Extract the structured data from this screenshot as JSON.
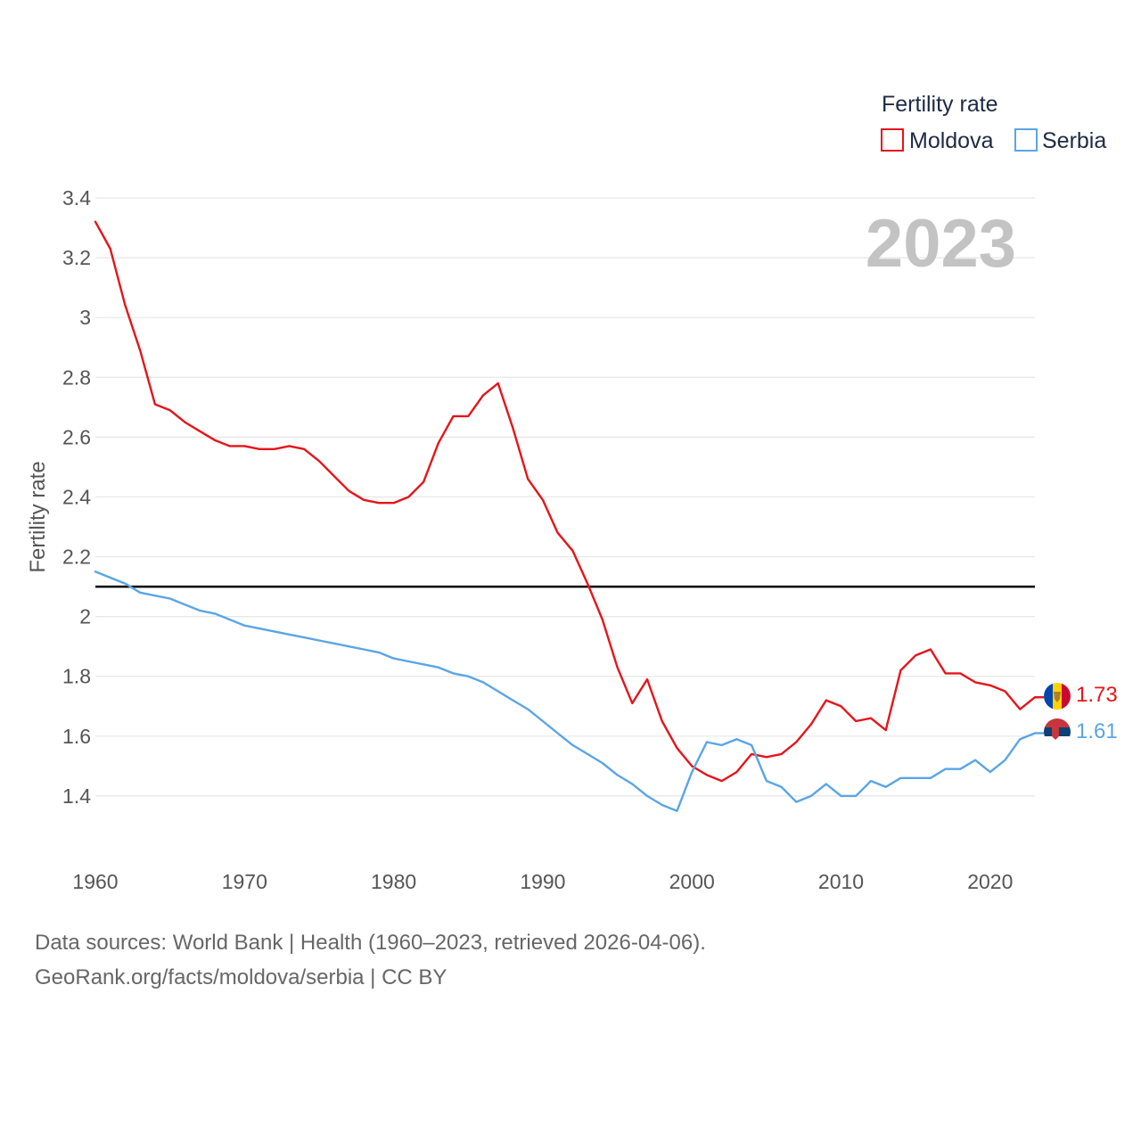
{
  "chart_data": {
    "type": "line",
    "title": "",
    "xlabel": "",
    "ylabel": "Fertility rate",
    "xlim": [
      1960,
      2023
    ],
    "ylim": [
      1.2,
      3.4
    ],
    "x_ticks": [
      1960,
      1970,
      1980,
      1990,
      2000,
      2010,
      2020
    ],
    "y_ticks": [
      1.4,
      1.6,
      1.8,
      2,
      2.2,
      2.4,
      2.6,
      2.8,
      3,
      3.2,
      3.4
    ],
    "y_tick_labels": [
      "1.4",
      "1.6",
      "1.8",
      "2",
      "2.2",
      "2.4",
      "2.6",
      "2.8",
      "3",
      "3.2",
      "3.4"
    ],
    "x_tick_labels": [
      "1960",
      "1970",
      "1980",
      "1990",
      "2000",
      "2010",
      "2020"
    ],
    "grid": true,
    "reference_line": {
      "y": 2.1,
      "color": "#000000"
    },
    "legend": {
      "title": "Fertility rate",
      "placement": "top-right"
    },
    "year_watermark": "2023",
    "x": [
      1960,
      1961,
      1962,
      1963,
      1964,
      1965,
      1966,
      1967,
      1968,
      1969,
      1970,
      1971,
      1972,
      1973,
      1974,
      1975,
      1976,
      1977,
      1978,
      1979,
      1980,
      1981,
      1982,
      1983,
      1984,
      1985,
      1986,
      1987,
      1988,
      1989,
      1990,
      1991,
      1992,
      1993,
      1994,
      1995,
      1996,
      1997,
      1998,
      1999,
      2000,
      2001,
      2002,
      2003,
      2004,
      2005,
      2006,
      2007,
      2008,
      2009,
      2010,
      2011,
      2012,
      2013,
      2014,
      2015,
      2016,
      2017,
      2018,
      2019,
      2020,
      2021,
      2022,
      2023
    ],
    "series": [
      {
        "name": "Moldova",
        "color": "#e6141b",
        "end_label": "1.73",
        "values": [
          3.32,
          3.23,
          3.04,
          2.89,
          2.71,
          2.69,
          2.65,
          2.62,
          2.59,
          2.57,
          2.57,
          2.56,
          2.56,
          2.57,
          2.56,
          2.52,
          2.47,
          2.42,
          2.39,
          2.38,
          2.38,
          2.4,
          2.45,
          2.58,
          2.67,
          2.67,
          2.74,
          2.78,
          2.63,
          2.46,
          2.39,
          2.28,
          2.22,
          2.11,
          1.99,
          1.83,
          1.71,
          1.79,
          1.65,
          1.56,
          1.5,
          1.47,
          1.45,
          1.48,
          1.54,
          1.53,
          1.54,
          1.58,
          1.64,
          1.72,
          1.7,
          1.65,
          1.66,
          1.62,
          1.82,
          1.87,
          1.89,
          1.81,
          1.81,
          1.78,
          1.77,
          1.75,
          1.69,
          1.73
        ]
      },
      {
        "name": "Serbia",
        "color": "#5aa5e6",
        "end_label": "1.61",
        "values": [
          2.15,
          2.13,
          2.11,
          2.08,
          2.07,
          2.06,
          2.04,
          2.02,
          2.01,
          1.99,
          1.97,
          1.96,
          1.95,
          1.94,
          1.93,
          1.92,
          1.91,
          1.9,
          1.89,
          1.88,
          1.86,
          1.85,
          1.84,
          1.83,
          1.81,
          1.8,
          1.78,
          1.75,
          1.72,
          1.69,
          1.65,
          1.61,
          1.57,
          1.54,
          1.51,
          1.47,
          1.44,
          1.4,
          1.37,
          1.35,
          1.48,
          1.58,
          1.57,
          1.59,
          1.57,
          1.45,
          1.43,
          1.38,
          1.4,
          1.44,
          1.4,
          1.4,
          1.45,
          1.43,
          1.46,
          1.46,
          1.46,
          1.49,
          1.49,
          1.52,
          1.48,
          1.52,
          1.59,
          1.61
        ]
      }
    ]
  },
  "footer": {
    "line1": "Data sources: World Bank | Health (1960–2023, retrieved 2026-04-06).",
    "line2": "GeoRank.org/facts/moldova/serbia | CC BY"
  },
  "flags": {
    "moldova": {
      "blue": "#0046ae",
      "yellow": "#ffd200",
      "red": "#cc092f",
      "emblem": "#b07e2a"
    },
    "serbia": {
      "red": "#c6363c",
      "blue": "#0c4076",
      "white": "#ffffff"
    }
  }
}
